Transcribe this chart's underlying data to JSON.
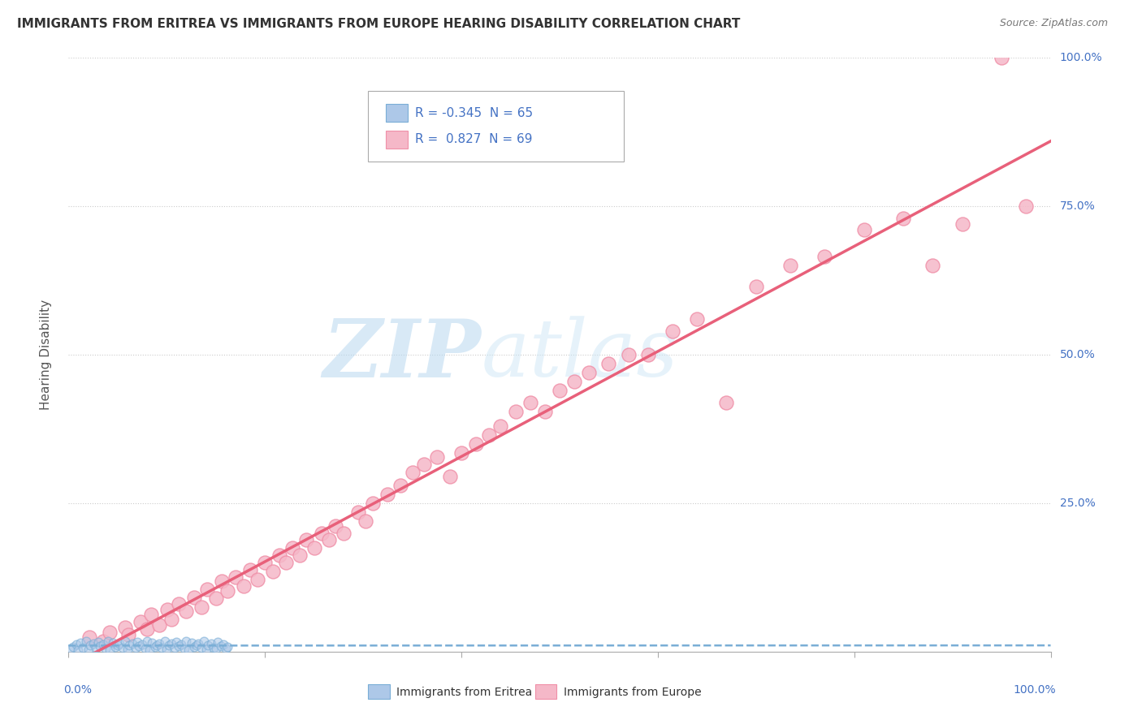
{
  "title": "IMMIGRANTS FROM ERITREA VS IMMIGRANTS FROM EUROPE HEARING DISABILITY CORRELATION CHART",
  "source": "Source: ZipAtlas.com",
  "ylabel": "Hearing Disability",
  "legend_label1": "Immigrants from Eritrea",
  "legend_label2": "Immigrants from Europe",
  "r1": "-0.345",
  "n1": "65",
  "r2": "0.827",
  "n2": "69",
  "color_eritrea_fill": "#adc8e8",
  "color_eritrea_edge": "#7aaed6",
  "color_eritrea_line": "#7aaed6",
  "color_europe_fill": "#f5b8c8",
  "color_europe_edge": "#f090a8",
  "color_europe_line": "#e8607a",
  "color_text_blue": "#4472c4",
  "color_title": "#333333",
  "color_source": "#777777",
  "watermark_color": "#d0e8f5",
  "background": "#ffffff",
  "grid_color": "#cccccc",
  "xlim": [
    0,
    100
  ],
  "ylim": [
    0,
    100
  ],
  "ytick_pct": [
    25,
    50,
    75,
    100
  ],
  "xtick_vals": [
    0,
    20,
    40,
    60,
    80,
    100
  ],
  "europe_x": [
    2.1,
    3.5,
    4.2,
    5.8,
    6.1,
    7.3,
    8.0,
    8.4,
    9.2,
    10.1,
    10.5,
    11.2,
    12.0,
    12.8,
    13.5,
    14.1,
    15.0,
    15.6,
    16.2,
    17.0,
    17.8,
    18.5,
    19.2,
    20.0,
    20.8,
    21.5,
    22.1,
    22.8,
    23.5,
    24.2,
    25.0,
    25.8,
    26.5,
    27.2,
    28.0,
    29.5,
    30.2,
    31.0,
    32.5,
    33.8,
    35.0,
    36.2,
    37.5,
    38.8,
    40.0,
    41.5,
    42.8,
    44.0,
    45.5,
    47.0,
    48.5,
    50.0,
    51.5,
    53.0,
    55.0,
    57.0,
    59.0,
    61.5,
    64.0,
    67.0,
    70.0,
    73.5,
    77.0,
    81.0,
    85.0,
    88.0,
    91.0,
    95.0,
    97.5
  ],
  "europe_y": [
    2.5,
    1.8,
    3.2,
    4.1,
    2.8,
    5.0,
    3.8,
    6.2,
    4.5,
    7.1,
    5.5,
    8.0,
    6.8,
    9.2,
    7.5,
    10.5,
    9.0,
    11.8,
    10.2,
    12.5,
    11.0,
    13.8,
    12.2,
    15.0,
    13.5,
    16.2,
    15.0,
    17.5,
    16.2,
    18.8,
    17.5,
    20.0,
    18.8,
    21.2,
    20.0,
    23.5,
    22.0,
    25.0,
    26.5,
    28.0,
    30.2,
    31.5,
    32.8,
    29.5,
    33.5,
    35.0,
    36.5,
    38.0,
    40.5,
    42.0,
    40.5,
    44.0,
    45.5,
    47.0,
    48.5,
    50.0,
    50.0,
    54.0,
    56.0,
    42.0,
    61.5,
    65.0,
    66.5,
    71.0,
    73.0,
    65.0,
    72.0,
    100.0,
    75.0
  ],
  "eritrea_x": [
    0.2,
    0.5,
    0.8,
    1.0,
    1.2,
    1.5,
    1.8,
    2.0,
    2.2,
    2.5,
    2.8,
    3.0,
    3.2,
    3.5,
    3.8,
    4.0,
    4.2,
    4.5,
    4.8,
    5.0,
    5.2,
    5.5,
    5.8,
    6.0,
    6.2,
    6.5,
    6.8,
    7.0,
    7.2,
    7.5,
    7.8,
    8.0,
    8.2,
    8.5,
    8.8,
    9.0,
    9.2,
    9.5,
    9.8,
    10.0,
    10.2,
    10.5,
    10.8,
    11.0,
    11.2,
    11.5,
    11.8,
    12.0,
    12.2,
    12.5,
    12.8,
    13.0,
    13.2,
    13.5,
    13.8,
    14.0,
    14.2,
    14.5,
    14.8,
    15.0,
    15.2,
    15.5,
    15.8,
    16.0,
    16.2
  ],
  "eritrea_y": [
    0.5,
    0.8,
    1.2,
    0.3,
    1.5,
    0.6,
    1.8,
    0.4,
    1.0,
    1.3,
    0.7,
    1.6,
    0.9,
    1.2,
    0.5,
    1.8,
    0.3,
    1.5,
    0.8,
    1.1,
    1.4,
    0.6,
    1.7,
    0.4,
    1.0,
    1.3,
    0.7,
    1.6,
    0.9,
    1.2,
    0.5,
    1.8,
    0.3,
    1.5,
    0.8,
    1.1,
    1.4,
    0.6,
    1.7,
    0.4,
    1.0,
    1.3,
    0.7,
    1.6,
    0.9,
    1.2,
    0.5,
    1.8,
    0.3,
    1.5,
    0.8,
    1.1,
    1.4,
    0.6,
    1.7,
    0.4,
    1.0,
    1.3,
    0.7,
    0.5,
    1.6,
    0.9,
    1.2,
    0.5,
    0.8
  ]
}
